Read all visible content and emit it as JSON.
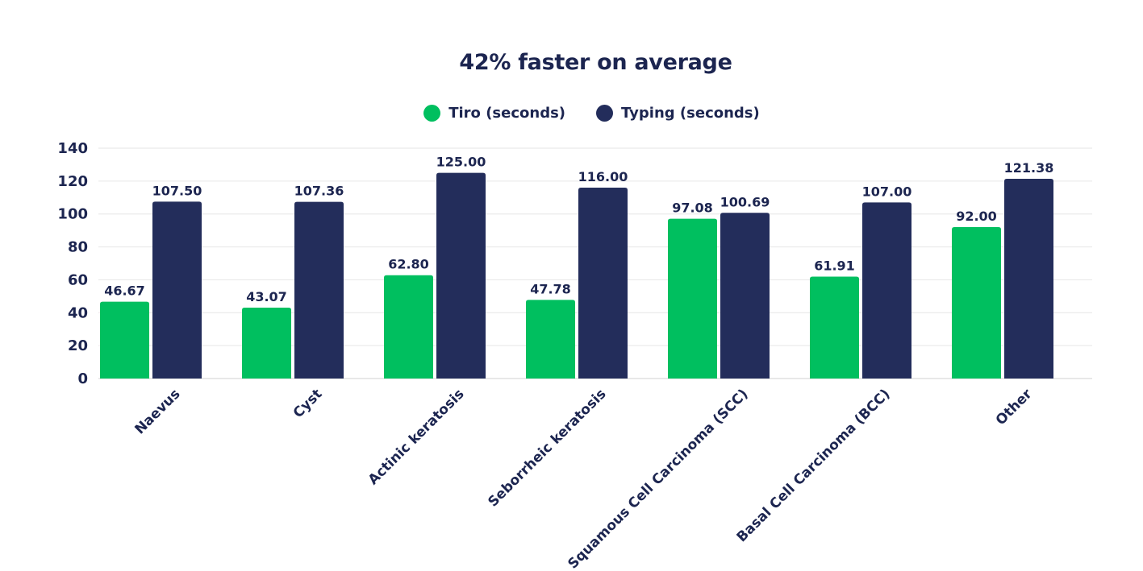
{
  "chart_data": {
    "type": "bar",
    "title": "42% faster on average",
    "categories": [
      "Naevus",
      "Cyst",
      "Actinic keratosis",
      "Seborrheic keratosis",
      "Squamous Cell Carcinoma (SCC)",
      "Basal Cell Carcinoma (BCC)",
      "Other"
    ],
    "series": [
      {
        "name": "Tiro (seconds)",
        "color": "#00bf5f",
        "values": [
          46.67,
          43.07,
          62.8,
          47.78,
          97.08,
          61.91,
          92.0
        ],
        "labels": [
          "46.67",
          "43.07",
          "62.80",
          "47.78",
          "97.08",
          "61.91",
          "92.00"
        ]
      },
      {
        "name": "Typing (seconds)",
        "color": "#232d5b",
        "values": [
          107.5,
          107.36,
          125.0,
          116.0,
          100.69,
          107.0,
          121.38
        ],
        "labels": [
          "107.50",
          "107.36",
          "125.00",
          "116.00",
          "100.69",
          "107.00",
          "121.38"
        ]
      }
    ],
    "ylim": [
      0,
      140
    ],
    "yticks": [
      "0",
      "20",
      "40",
      "60",
      "80",
      "100",
      "120",
      "140"
    ],
    "grid": true,
    "legend": "top-center",
    "xlabel": "",
    "ylabel": ""
  }
}
